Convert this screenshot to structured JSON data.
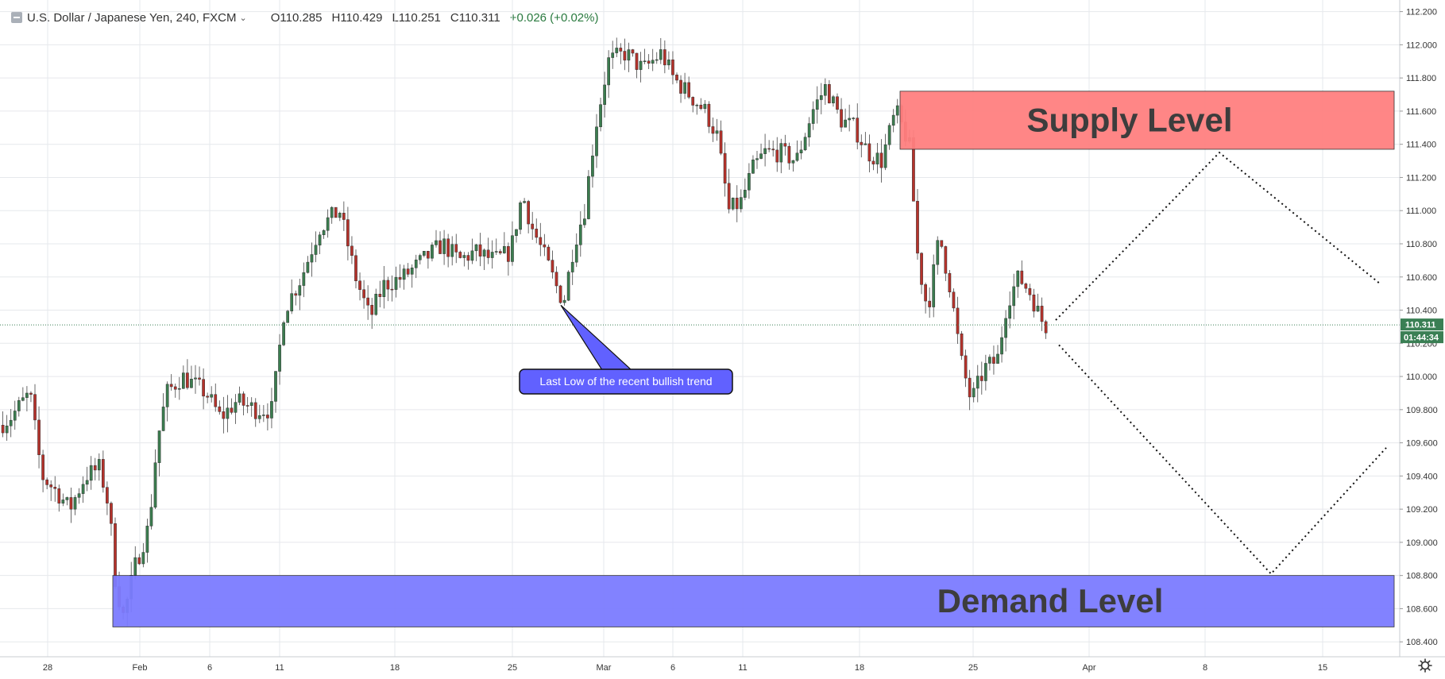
{
  "legend": {
    "symbol": "U.S. Dollar / Japanese Yen, 240, FXCM",
    "open": "O110.285",
    "high": "H110.429",
    "low": "L110.251",
    "close": "C110.311",
    "change": "+0.026 (+0.02%)"
  },
  "price_badge": "110.311",
  "countdown_badge": "01:44:34",
  "colors": {
    "up_candle": "#3b7d4f",
    "down_candle": "#b5322b",
    "supply_zone": "#ff7f7f",
    "demand_zone": "#7b7bff",
    "callout": "#6161ff",
    "price_line": "#3a7f54"
  },
  "icons": [
    "menu-icon",
    "chevron-down-icon",
    "settings-icon"
  ],
  "chart_data": {
    "type": "candlestick",
    "instrument": "U.S. Dollar / Japanese Yen",
    "timeframe": "240",
    "source": "FXCM",
    "y_axis": {
      "ylim": [
        108.31,
        112.27
      ],
      "ticks": [
        "112.200",
        "112.000",
        "111.800",
        "111.600",
        "111.400",
        "111.200",
        "111.000",
        "110.800",
        "110.600",
        "110.400",
        "110.200",
        "110.000",
        "109.800",
        "109.600",
        "109.400",
        "109.200",
        "109.000",
        "108.800",
        "108.600",
        "108.400"
      ]
    },
    "x_axis": {
      "ticks": [
        "28",
        "Feb",
        "6",
        "11",
        "18",
        "25",
        "Mar",
        "6",
        "11",
        "18",
        "25",
        "Apr",
        "8",
        "15"
      ]
    },
    "grid": true,
    "last_price": 110.311,
    "zones": [
      {
        "label": "Supply Level",
        "top": 111.72,
        "bottom": 111.37
      },
      {
        "label": "Demand Level",
        "top": 108.8,
        "bottom": 108.49
      }
    ],
    "annotations": [
      {
        "text": "Last Low of the recent bullish trend",
        "price": 110.43
      }
    ],
    "projections": [
      {
        "style": "dotted",
        "points": [
          [
            110.34
          ],
          [
            111.35
          ],
          [
            110.56
          ]
        ]
      },
      {
        "style": "dotted",
        "points": [
          [
            110.19
          ],
          [
            108.81
          ],
          [
            109.57
          ]
        ]
      }
    ]
  }
}
